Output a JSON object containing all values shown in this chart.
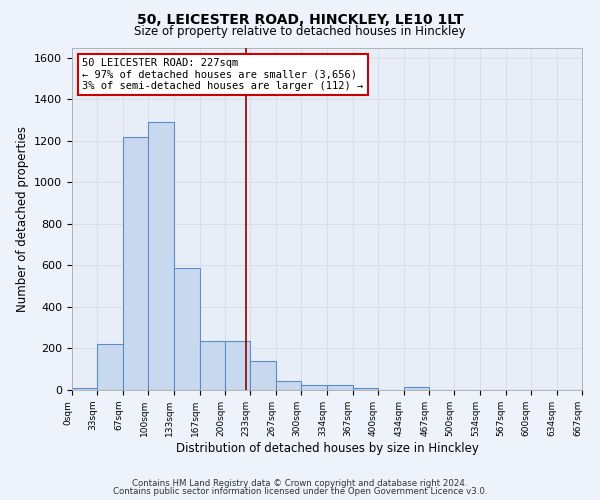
{
  "title1": "50, LEICESTER ROAD, HINCKLEY, LE10 1LT",
  "title2": "Size of property relative to detached houses in Hinckley",
  "xlabel": "Distribution of detached houses by size in Hinckley",
  "ylabel": "Number of detached properties",
  "bin_edges": [
    0,
    33,
    67,
    100,
    133,
    167,
    200,
    233,
    267,
    300,
    334,
    367,
    400,
    434,
    467,
    500,
    534,
    567,
    600,
    634,
    667
  ],
  "bar_heights": [
    10,
    220,
    1220,
    1290,
    590,
    235,
    235,
    140,
    45,
    25,
    25,
    10,
    0,
    15,
    0,
    0,
    0,
    0,
    0,
    0
  ],
  "bar_color": "#c8d8ee",
  "bar_edge_color": "#5b8dc8",
  "bg_color": "#e8eef8",
  "grid_color": "#d8dde8",
  "property_line_x": 227,
  "annotation_text_line1": "50 LEICESTER ROAD: 227sqm",
  "annotation_text_line2": "← 97% of detached houses are smaller (3,656)",
  "annotation_text_line3": "3% of semi-detached houses are larger (112) →",
  "annotation_box_color": "#ffffff",
  "annotation_box_edge": "#cc0000",
  "vline_color": "#8b0000",
  "ylim": [
    0,
    1650
  ],
  "yticks": [
    0,
    200,
    400,
    600,
    800,
    1000,
    1200,
    1400,
    1600
  ],
  "footer_line1": "Contains HM Land Registry data © Crown copyright and database right 2024.",
  "footer_line2": "Contains public sector information licensed under the Open Government Licence v3.0.",
  "fig_bg": "#eef2fa"
}
